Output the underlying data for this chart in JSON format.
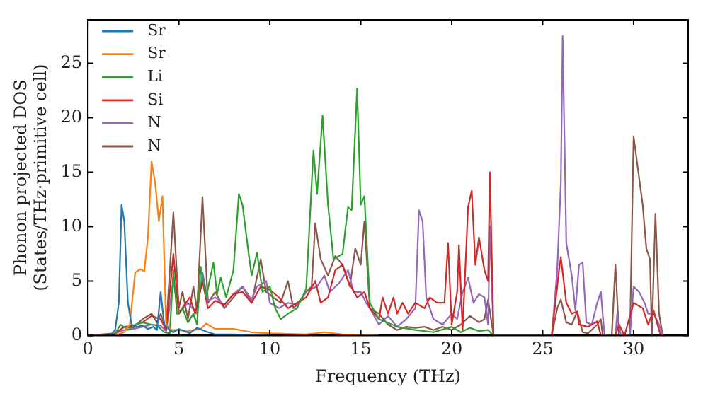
{
  "chart_data": {
    "type": "line",
    "xlabel": "Frequency (THz)",
    "ylabel": "Phonon projected DOS\n(States/THz·primitive cell)",
    "xlim": [
      0,
      33
    ],
    "ylim": [
      0,
      29
    ],
    "xticks": [
      0,
      5,
      10,
      15,
      20,
      25,
      30
    ],
    "yticks": [
      0,
      5,
      10,
      15,
      20,
      25
    ],
    "legend": "top left",
    "grid": false,
    "marker": "none",
    "line_style": "solid",
    "series": [
      {
        "name": "Sr",
        "color": "#1f77b4",
        "x": [
          1.2,
          1.5,
          1.7,
          1.85,
          2.0,
          2.2,
          2.4,
          2.7,
          3.0,
          3.3,
          3.6,
          3.8,
          4.0,
          4.2,
          4.5,
          4.7,
          5.0,
          5.3,
          5.6,
          6.0,
          6.3,
          6.6,
          7,
          8,
          10
        ],
        "values": [
          0,
          0.5,
          3,
          12,
          10.5,
          3,
          1,
          0.8,
          0.9,
          0.6,
          0.8,
          0.5,
          4,
          1,
          0.5,
          0.3,
          0.6,
          0.4,
          0.2,
          0.7,
          0.5,
          0.3,
          0.1,
          0.1,
          0
        ]
      },
      {
        "name": "Sr",
        "color": "#ff7f0e",
        "x": [
          1.5,
          2.0,
          2.3,
          2.6,
          2.9,
          3.1,
          3.3,
          3.5,
          3.7,
          3.9,
          4.1,
          4.3,
          4.6,
          5,
          5.5,
          6.2,
          6.5,
          7,
          8,
          9,
          10,
          12,
          13,
          14,
          16
        ],
        "values": [
          0,
          0.3,
          1,
          5.8,
          6.1,
          5.9,
          9,
          16,
          14,
          10.5,
          12.8,
          1,
          0.5,
          0.5,
          0.4,
          0.6,
          1.1,
          0.6,
          0.6,
          0.3,
          0.2,
          0.1,
          0.3,
          0.1,
          0
        ]
      },
      {
        "name": "Li",
        "color": "#2ca02c",
        "x": [
          1.5,
          1.8,
          2.2,
          2.6,
          3,
          3.5,
          3.8,
          4.2,
          4.5,
          4.7,
          4.9,
          5.2,
          5.5,
          5.8,
          6.0,
          6.2,
          6.5,
          6.9,
          7.1,
          7.3,
          7.6,
          8.0,
          8.3,
          8.5,
          8.8,
          9.0,
          9.3,
          9.6,
          10,
          10.3,
          10.6,
          11,
          11.5,
          12,
          12.4,
          12.6,
          12.9,
          13.2,
          13.5,
          14,
          14.3,
          14.5,
          14.8,
          15.0,
          15.2,
          15.5,
          16,
          17,
          18,
          19,
          20,
          20.5,
          21,
          21.5,
          22,
          22.3
        ],
        "values": [
          0.2,
          1,
          0.5,
          1,
          1.2,
          1,
          0.9,
          0.3,
          0.2,
          6,
          2,
          2.5,
          1.2,
          2,
          1,
          6.3,
          3.5,
          6.7,
          3.8,
          5.3,
          3.5,
          6,
          13,
          12,
          8,
          5.5,
          7.6,
          4,
          4.5,
          2.5,
          1.5,
          2,
          2.5,
          4.3,
          17,
          13,
          20.2,
          12,
          7,
          7.5,
          11.8,
          11.5,
          22.7,
          12,
          12.8,
          3,
          1.5,
          0.8,
          0.5,
          0.3,
          0.8,
          0.3,
          0.7,
          0.4,
          0.5,
          0
        ]
      },
      {
        "name": "Si",
        "color": "#d62728",
        "x": [
          1.5,
          2,
          2.5,
          3,
          3.5,
          4,
          4.3,
          4.7,
          5.0,
          5.3,
          5.6,
          5.9,
          6.3,
          6.6,
          7,
          7.5,
          8,
          8.5,
          9,
          9.5,
          10,
          10.5,
          11,
          11.5,
          12,
          12.5,
          12.8,
          13.2,
          13.6,
          14,
          14.3,
          14.8,
          15.2,
          15.5,
          16,
          16.2,
          16.5,
          16.8,
          17,
          17.3,
          17.6,
          18,
          18.5,
          18.8,
          19.2,
          19.6,
          19.8,
          20,
          20.3,
          20.4,
          20.6,
          20.9,
          21.1,
          21.3,
          21.5,
          21.8,
          22.0,
          22.1,
          22.3,
          25.5,
          25.9,
          26.0,
          26.3,
          26.6,
          26.9,
          27,
          27.5,
          28,
          28.2,
          29.0,
          29.2,
          29.5,
          30,
          30.5,
          30.8,
          31.1,
          31.4,
          31.5
        ],
        "values": [
          0.2,
          0.8,
          0.9,
          1.2,
          1.8,
          1.5,
          0.5,
          7.5,
          2,
          2.8,
          3.5,
          2,
          5,
          2.5,
          3.2,
          2.8,
          3.8,
          4,
          3,
          4.5,
          4.2,
          3.5,
          2.5,
          3.0,
          3.5,
          5,
          3,
          3.5,
          6,
          6.5,
          5,
          3.5,
          4,
          2.5,
          1.5,
          3.5,
          2,
          3.5,
          2,
          3,
          2,
          3,
          2.5,
          3.5,
          3,
          3,
          8.5,
          1,
          4,
          8.3,
          0.5,
          11.8,
          13.3,
          6.5,
          9,
          6,
          5,
          15,
          0,
          0,
          6,
          7.2,
          3,
          2,
          2.2,
          1,
          0.8,
          1.3,
          0,
          0,
          1,
          0,
          3,
          2.5,
          1,
          2.3,
          0.5,
          0
        ]
      },
      {
        "name": "N",
        "color": "#9467bd",
        "x": [
          1.5,
          2,
          2.5,
          3,
          3.5,
          4,
          4.3,
          4.7,
          5,
          5.5,
          6,
          6.3,
          6.6,
          7,
          7.5,
          8,
          8.5,
          9,
          9.3,
          9.8,
          10,
          10.5,
          11,
          11.5,
          12,
          12.3,
          12.6,
          13,
          13.3,
          13.8,
          14.3,
          14.6,
          15,
          15.3,
          15.6,
          16,
          16.5,
          17,
          17.5,
          18,
          18.2,
          18.4,
          18.6,
          19,
          19.5,
          20,
          20.3,
          20.6,
          20.9,
          21.2,
          21.5,
          21.8,
          22.0,
          22.1,
          22.3,
          25.5,
          25.8,
          26.0,
          26.1,
          26.3,
          26.6,
          26.8,
          27,
          27.2,
          27.4,
          27.7,
          28,
          28.2,
          28.4,
          29,
          29.1,
          29.3,
          29.8,
          30,
          30.3,
          30.6,
          30.8,
          31.1,
          31.4,
          31.6
        ],
        "values": [
          0.2,
          0.5,
          0.6,
          0.8,
          1,
          0.9,
          0.4,
          5,
          2,
          3,
          2,
          5.8,
          3.2,
          3.5,
          2.8,
          3.8,
          4.5,
          3.3,
          4.5,
          5,
          3,
          2.5,
          3,
          2.8,
          4,
          4.3,
          4.5,
          5.5,
          4,
          4.8,
          6,
          4,
          4,
          3,
          2.2,
          1,
          1.8,
          0.8,
          1.5,
          2.5,
          11.5,
          10.5,
          3.5,
          1.5,
          1,
          2,
          1.5,
          4,
          5.3,
          3,
          3.8,
          3.5,
          1,
          10,
          0,
          0,
          6,
          14,
          27.5,
          8.5,
          5.5,
          2.3,
          6.5,
          6.7,
          1.2,
          1,
          3,
          4,
          0,
          0,
          2,
          0,
          0,
          4.5,
          4,
          3,
          2,
          2,
          1,
          0
        ]
      },
      {
        "name": "N",
        "color": "#8c564b",
        "x": [
          0,
          1.5,
          2,
          2.5,
          3,
          3.5,
          3.8,
          4,
          4.3,
          4.7,
          5.0,
          5.2,
          5.5,
          5.8,
          6.0,
          6.3,
          6.6,
          7,
          7.5,
          8,
          8.5,
          9,
          9.5,
          9.8,
          10.2,
          10.6,
          11,
          11.3,
          11.6,
          12,
          12.3,
          12.5,
          12.8,
          13.2,
          13.6,
          14,
          14.4,
          14.7,
          15.0,
          15.2,
          15.5,
          16,
          16.5,
          17,
          17.5,
          18,
          18.5,
          19,
          19.5,
          20,
          20.5,
          21,
          21.5,
          21.8,
          22,
          22.3,
          25.5,
          25.8,
          26.0,
          26.3,
          26.6,
          26.9,
          27.2,
          27.5,
          28,
          28.2,
          28.3,
          28.8,
          29,
          29.2,
          29.8,
          30,
          30.3,
          30.5,
          30.7,
          30.9,
          31.0,
          31.2,
          31.4,
          31.6
        ],
        "values": [
          0,
          0.2,
          0.8,
          0.7,
          1.5,
          2,
          1.2,
          2,
          0.5,
          11.3,
          2.5,
          4,
          1.5,
          4.5,
          2.3,
          12.7,
          3,
          4,
          2.5,
          3.5,
          4.5,
          3,
          7,
          4,
          3.5,
          3,
          5,
          2.5,
          3,
          4,
          4.5,
          10.3,
          7,
          5.5,
          7.3,
          6.5,
          4.5,
          8,
          6.5,
          10.5,
          2.5,
          2,
          1,
          0.5,
          0.8,
          0.7,
          0.8,
          0.5,
          0.8,
          0.5,
          1,
          1.8,
          1.2,
          1.5,
          3.3,
          0,
          0,
          2.5,
          3.3,
          1.2,
          1,
          2.2,
          0.3,
          0.2,
          1,
          1.5,
          0,
          0,
          6.5,
          0,
          0,
          18.3,
          14.5,
          12,
          8,
          7,
          0,
          11.2,
          2,
          0
        ]
      }
    ]
  }
}
